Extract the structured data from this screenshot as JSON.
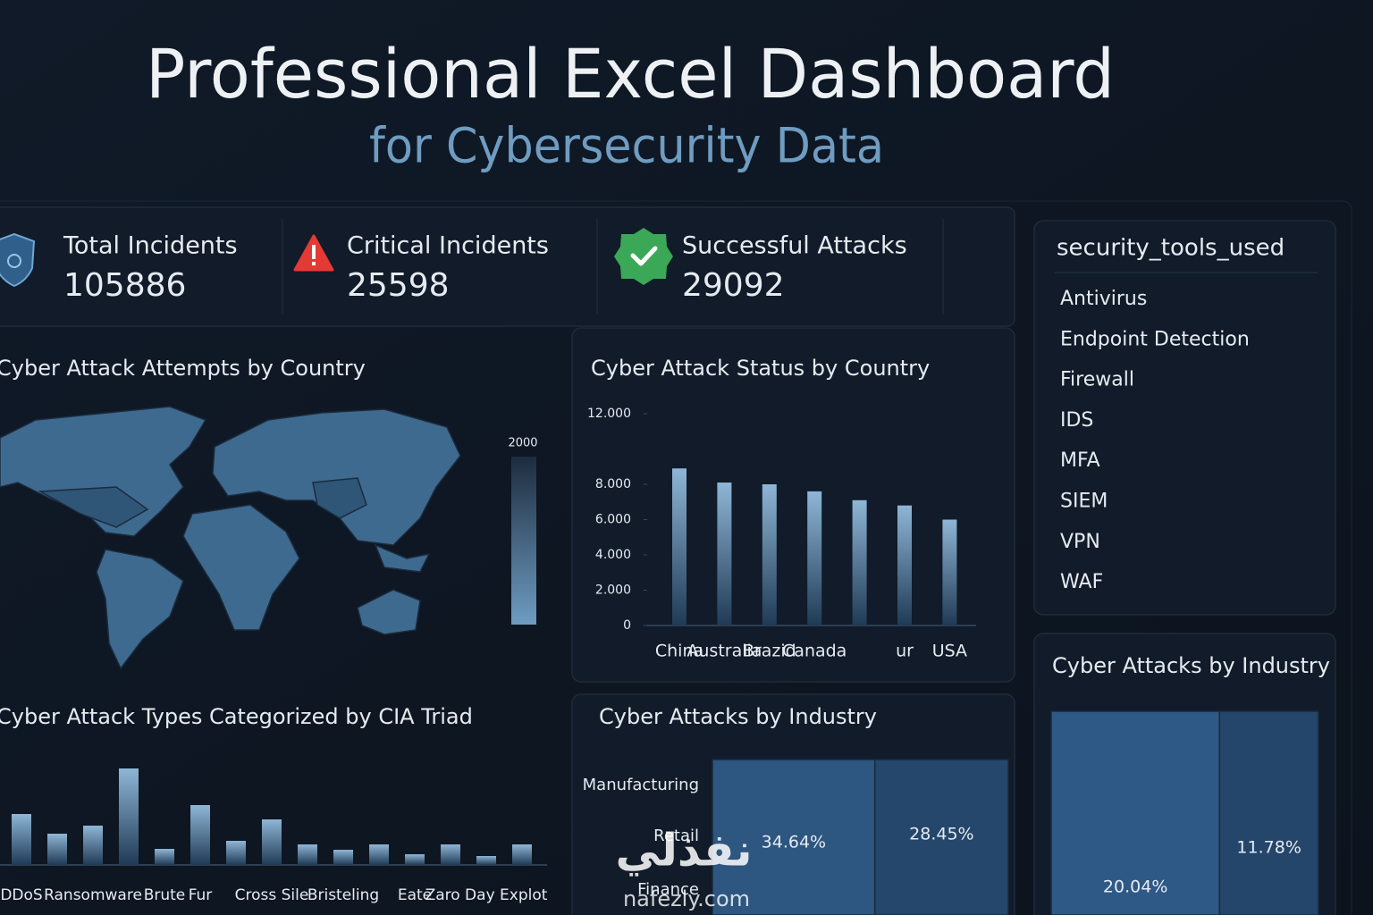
{
  "header": {
    "title": "Professional Excel Dashboard",
    "subtitle": "for Cybersecurity Data"
  },
  "kpis": [
    {
      "label": "Total Incidents",
      "value": 105886
    },
    {
      "label": "Critical Incidents",
      "value": 25598
    },
    {
      "label": "Successful Attacks",
      "value": 29092
    }
  ],
  "tools": {
    "title": "security_tools_used",
    "items": [
      "Antivirus",
      "Endpoint Detection",
      "Firewall",
      "IDS",
      "MFA",
      "SIEM",
      "VPN",
      "WAF"
    ]
  },
  "chart_data": [
    {
      "type": "map",
      "title": "Cyber Attack Attempts by Country",
      "colorbar_ticks": [
        2000
      ]
    },
    {
      "type": "bar",
      "title": "Cyber Attack Status by Country",
      "categories": [
        "China",
        "Australia",
        "Brazid",
        "Canada",
        null,
        "ur",
        "USA"
      ],
      "values": [
        8900,
        8100,
        8000,
        7600,
        7100,
        6800,
        6000
      ],
      "ylim": [
        0,
        12000
      ],
      "yticks": [
        0,
        {
          "value": 2000,
          "label": "2.000"
        },
        {
          "value": 4000,
          "label": "4.000"
        },
        {
          "value": 6000,
          "label": "6.000"
        },
        {
          "value": 8000,
          "label": "8.000"
        },
        {
          "value": 12000,
          "label": "12.000"
        }
      ]
    },
    {
      "type": "bar",
      "title": "Cyber Attack Types Categorized by CIA Triad",
      "categories": [
        "DDoS",
        null,
        "Ransomware",
        null,
        "Brute",
        "Fur",
        null,
        "Cross Sile",
        null,
        "Bristeling",
        null,
        "Eate",
        null,
        "Zaro Day Explot",
        null
      ],
      "values": [
        57,
        35,
        44,
        108,
        18,
        67,
        27,
        51,
        23,
        17,
        23,
        12,
        23,
        10,
        23
      ]
    },
    {
      "type": "treemap",
      "title": "Cyber Attacks by Industry",
      "row_labels": [
        "Manufacturing",
        "Retail",
        "Finance"
      ],
      "values": [
        34.64,
        28.45
      ],
      "value_labels": [
        "34.64%",
        "28.45%"
      ],
      "colors": [
        "#2d5680",
        "#24476b"
      ]
    },
    {
      "type": "treemap",
      "title": "Cyber Attacks by Industry",
      "values": [
        20.04,
        11.78
      ],
      "value_labels": [
        "20.04%",
        "11.78%"
      ],
      "colors": [
        "#2e5986",
        "#24466a"
      ]
    }
  ],
  "watermark": {
    "arabic": "نفذلي",
    "latin": "nafezly.com"
  }
}
